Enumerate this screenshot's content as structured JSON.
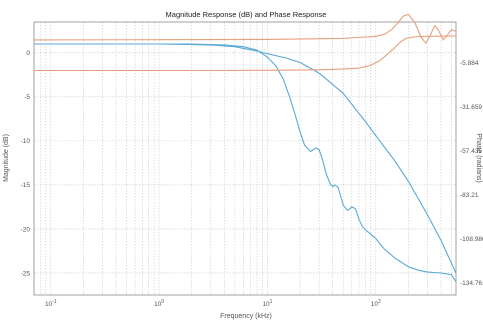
{
  "chart_data": {
    "type": "line",
    "title": "Magnitude Response (dB) and Phase Response",
    "xlabel": "Frequency (kHz)",
    "ylabel_left": "Magnitude (dB)",
    "ylabel_right": "Phase (radians)",
    "x_scale": "log",
    "xlim": [
      0.07,
      550
    ],
    "ylim_left": [
      -27.5,
      3.5
    ],
    "ylim_right": [
      -142,
      18
    ],
    "x_ticks": [
      {
        "v": 0.1,
        "label": "10^-1"
      },
      {
        "v": 1,
        "label": "10^0"
      },
      {
        "v": 10,
        "label": "10^1"
      },
      {
        "v": 100,
        "label": "10^2"
      }
    ],
    "left_ticks": [
      {
        "v": 0,
        "label": "0"
      },
      {
        "v": -5,
        "label": "-5"
      },
      {
        "v": -10,
        "label": "-10"
      },
      {
        "v": -15,
        "label": "-15"
      },
      {
        "v": -20,
        "label": "-20"
      },
      {
        "v": -25,
        "label": "-25"
      }
    ],
    "right_ticks": [
      {
        "v": -5.884,
        "label": "-5.884"
      },
      {
        "v": -31.659,
        "label": "-31.659"
      },
      {
        "v": -57.435,
        "label": "-57.435"
      },
      {
        "v": -83.21,
        "label": "-83.21"
      },
      {
        "v": -108.986,
        "label": "-108.986"
      },
      {
        "v": -134.761,
        "label": "-134.761"
      }
    ],
    "grid": true,
    "series": [
      {
        "axis": "left",
        "color": "#5aa9d6",
        "x": [
          0.07,
          0.2,
          0.5,
          1,
          2,
          4,
          6,
          8,
          10,
          12,
          14,
          16,
          18,
          20,
          22,
          25,
          28,
          30,
          32,
          35,
          38,
          40,
          42,
          45,
          48,
          50,
          55,
          60,
          65,
          70,
          75,
          80,
          90,
          100,
          120,
          150,
          200,
          250,
          300,
          400,
          500,
          550
        ],
        "y": [
          1.0,
          1.0,
          1.0,
          1.0,
          1.0,
          0.9,
          0.7,
          0.3,
          -0.5,
          -1.5,
          -3.0,
          -5.0,
          -7.0,
          -9.0,
          -10.5,
          -11.2,
          -10.8,
          -11.0,
          -12.0,
          -13.8,
          -14.9,
          -15.2,
          -15.0,
          -15.3,
          -16.5,
          -17.3,
          -17.9,
          -17.5,
          -17.7,
          -18.9,
          -19.7,
          -20.1,
          -20.6,
          -21.1,
          -22.3,
          -23.3,
          -24.3,
          -24.7,
          -24.9,
          -25.0,
          -25.2,
          -26.0
        ]
      },
      {
        "axis": "left",
        "color": "#5aa9d6",
        "x": [
          0.07,
          0.5,
          1,
          3,
          5,
          8,
          10,
          15,
          20,
          30,
          50,
          80,
          100,
          150,
          200,
          300,
          400,
          500,
          550
        ],
        "y": [
          1.0,
          1.0,
          1.0,
          0.9,
          0.7,
          0.2,
          -0.1,
          -0.6,
          -1.1,
          -2.3,
          -4.6,
          -7.8,
          -9.4,
          -12.3,
          -14.6,
          -18.4,
          -21.3,
          -23.9,
          -25.0
        ]
      },
      {
        "axis": "right",
        "color": "#e6a07e",
        "x": [
          0.07,
          1,
          10,
          50,
          80,
          100,
          120,
          140,
          160,
          180,
          200,
          230,
          260,
          290,
          320,
          350,
          380,
          420,
          460,
          500,
          550
        ],
        "y": [
          7.5,
          7.6,
          7.8,
          8.4,
          9.2,
          9.6,
          10.8,
          13.5,
          17.5,
          21.5,
          22.5,
          17.5,
          9.5,
          5.5,
          10.5,
          16.0,
          13.0,
          7.5,
          10.5,
          13.5,
          12.5
        ]
      },
      {
        "axis": "right",
        "color": "#e6a07e",
        "x": [
          0.07,
          1,
          10,
          30,
          50,
          70,
          90,
          110,
          130,
          150,
          170,
          190,
          210,
          230,
          260,
          300,
          400,
          550
        ],
        "y": [
          -10.4,
          -10.4,
          -10.3,
          -10.0,
          -9.6,
          -9.0,
          -7.4,
          -4.5,
          -0.5,
          3.0,
          6.5,
          8.4,
          9.0,
          9.3,
          9.5,
          9.6,
          9.7,
          9.8
        ]
      }
    ]
  }
}
